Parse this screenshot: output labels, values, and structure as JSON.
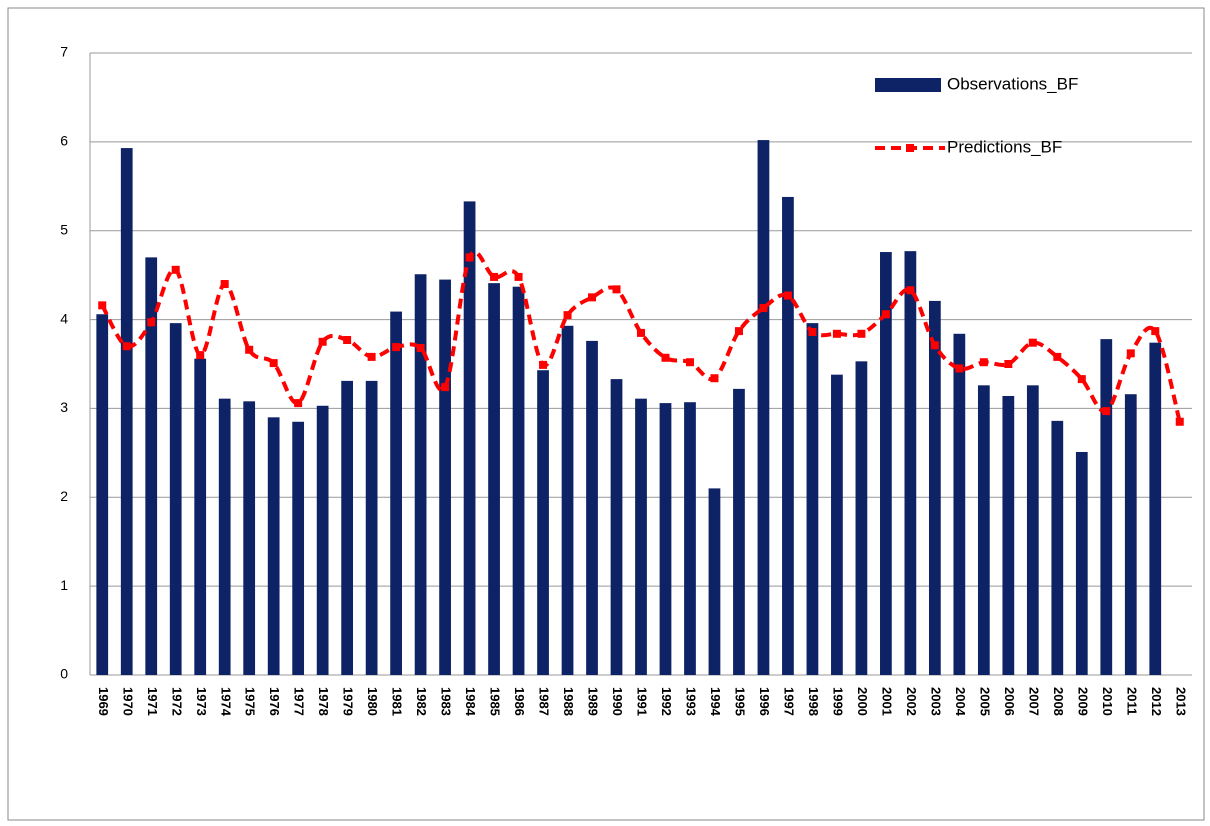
{
  "chart_data": {
    "type": "combo",
    "categories": [
      "1969",
      "1970",
      "1971",
      "1972",
      "1973",
      "1974",
      "1975",
      "1976",
      "1977",
      "1978",
      "1979",
      "1980",
      "1981",
      "1982",
      "1983",
      "1984",
      "1985",
      "1986",
      "1987",
      "1988",
      "1989",
      "1990",
      "1991",
      "1992",
      "1993",
      "1994",
      "1995",
      "1996",
      "1997",
      "1998",
      "1999",
      "2000",
      "2001",
      "2002",
      "2003",
      "2004",
      "2005",
      "2006",
      "2007",
      "2008",
      "2009",
      "2010",
      "2011",
      "2012",
      "2013"
    ],
    "series": [
      {
        "name": "Observations_BF",
        "type": "bar",
        "color": "#0e2366",
        "values": [
          4.06,
          5.93,
          4.7,
          3.96,
          3.56,
          3.11,
          3.08,
          2.9,
          2.85,
          3.03,
          3.31,
          3.31,
          4.09,
          4.51,
          4.45,
          5.33,
          4.41,
          4.37,
          3.43,
          3.93,
          3.76,
          3.33,
          3.11,
          3.06,
          3.07,
          2.1,
          3.22,
          6.02,
          5.38,
          3.96,
          3.38,
          3.53,
          4.76,
          4.77,
          4.21,
          3.84,
          3.26,
          3.14,
          3.26,
          2.86,
          2.51,
          3.78,
          3.16,
          3.74,
          null
        ]
      },
      {
        "name": "Predictions_BF",
        "type": "line",
        "color": "#ff0000",
        "values": [
          4.16,
          3.7,
          3.97,
          4.56,
          3.6,
          4.4,
          3.66,
          3.51,
          3.06,
          3.75,
          3.77,
          3.58,
          3.69,
          3.68,
          3.24,
          4.7,
          4.48,
          4.48,
          3.49,
          4.05,
          4.25,
          4.34,
          3.85,
          3.57,
          3.52,
          3.34,
          3.87,
          4.13,
          4.27,
          3.86,
          3.84,
          3.84,
          4.06,
          4.33,
          3.71,
          3.45,
          3.52,
          3.5,
          3.74,
          3.58,
          3.33,
          2.97,
          3.62,
          3.87,
          2.85
        ]
      }
    ],
    "ylim": [
      0,
      7
    ],
    "yticks": [
      0,
      1,
      2,
      3,
      4,
      5,
      6,
      7
    ],
    "grid": true,
    "legend": "top-right"
  }
}
